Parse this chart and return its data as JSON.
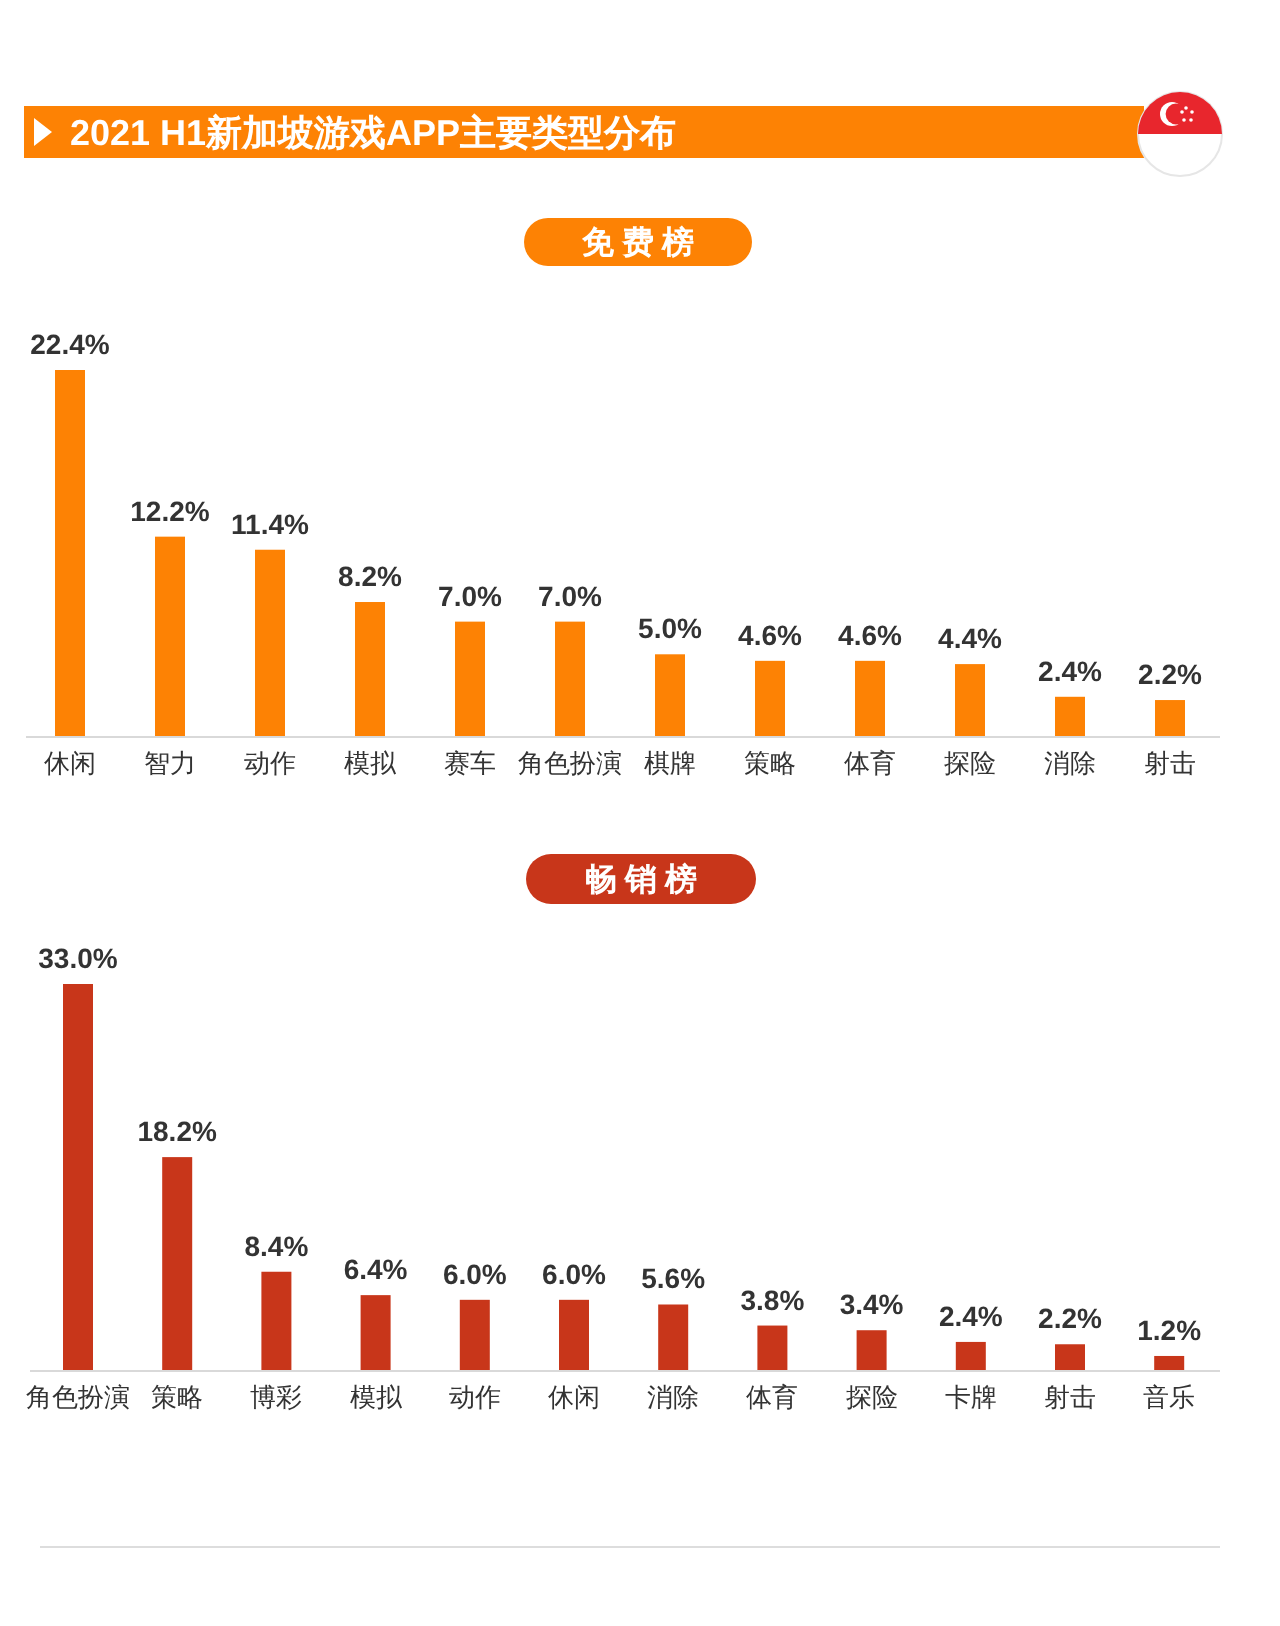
{
  "chart_data": [
    {
      "type": "bar",
      "title": "2021 H1新加坡游戏APP主要类型分布",
      "subtitle": "免费榜",
      "color": "#fd8204",
      "categories": [
        "休闲",
        "智力",
        "动作",
        "模拟",
        "赛车",
        "角色扮演",
        "棋牌",
        "策略",
        "体育",
        "探险",
        "消除",
        "射击"
      ],
      "values": [
        22.4,
        12.2,
        11.4,
        8.2,
        7.0,
        7.0,
        5.0,
        4.6,
        4.6,
        4.4,
        2.4,
        2.2
      ],
      "value_labels": [
        "22.4%",
        "12.2%",
        "11.4%",
        "8.2%",
        "7.0%",
        "7.0%",
        "5.0%",
        "4.6%",
        "4.6%",
        "4.4%",
        "2.4%",
        "2.2%"
      ]
    },
    {
      "type": "bar",
      "title": "畅销榜",
      "color": "#c8361a",
      "categories": [
        "角色扮演",
        "策略",
        "博彩",
        "模拟",
        "动作",
        "休闲",
        "消除",
        "体育",
        "探险",
        "卡牌",
        "射击",
        "音乐"
      ],
      "values": [
        33.0,
        18.2,
        8.4,
        6.4,
        6.0,
        6.0,
        5.6,
        3.8,
        3.4,
        2.4,
        2.2,
        1.2
      ],
      "value_labels": [
        "33.0%",
        "18.2%",
        "8.4%",
        "6.4%",
        "6.0%",
        "6.0%",
        "5.6%",
        "3.8%",
        "3.4%",
        "2.4%",
        "2.2%",
        "1.2%"
      ]
    }
  ]
}
